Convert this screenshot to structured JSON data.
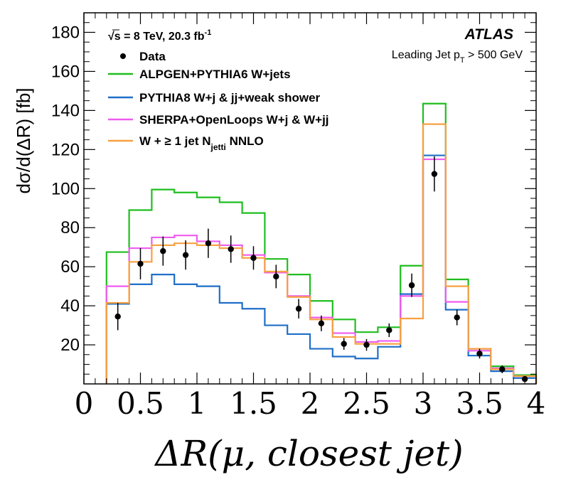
{
  "chart_data": {
    "type": "line",
    "xlabel": "ΔR(μ, closest jet)",
    "ylabel": "dσ/d(ΔR) [fb]",
    "xlim": [
      0,
      4
    ],
    "ylim": [
      0,
      190
    ],
    "x_ticks": [
      "0",
      "0.5",
      "1",
      "1.5",
      "2",
      "2.5",
      "3",
      "3.5",
      "4"
    ],
    "y_ticks": [
      "20",
      "40",
      "60",
      "80",
      "100",
      "120",
      "140",
      "160",
      "180"
    ],
    "bin_edges": [
      0.2,
      0.4,
      0.6,
      0.8,
      1.0,
      1.2,
      1.4,
      1.6,
      1.8,
      2.0,
      2.2,
      2.4,
      2.6,
      2.8,
      3.0,
      3.2,
      3.4,
      3.6,
      3.8,
      4.0
    ],
    "annotations": {
      "energy_prefix": "√s = 8 TeV, 20.3 fb",
      "energy_sup": "-1",
      "experiment": "ATLAS",
      "selection_prefix": "Leading Jet p",
      "selection_sub": "T",
      "selection_suffix": " > 500 GeV"
    },
    "data": {
      "name": "Data",
      "color": "#000000",
      "x": [
        0.3,
        0.5,
        0.7,
        0.9,
        1.1,
        1.3,
        1.5,
        1.7,
        1.9,
        2.1,
        2.3,
        2.5,
        2.7,
        2.9,
        3.1,
        3.3,
        3.5,
        3.7,
        3.9
      ],
      "y": [
        34.5,
        61.5,
        68.0,
        66.0,
        72.0,
        69.0,
        64.5,
        55.0,
        38.5,
        31.0,
        20.5,
        20.0,
        27.5,
        50.5,
        107.5,
        34.0,
        15.5,
        7.5,
        2.5
      ],
      "err": [
        7.0,
        8.0,
        7.5,
        7.5,
        7.5,
        7.0,
        6.0,
        6.0,
        5.0,
        4.0,
        3.0,
        3.0,
        3.5,
        6.0,
        9.0,
        4.0,
        2.5,
        2.0,
        1.0
      ]
    },
    "series": [
      {
        "name": "ALPGEN+PYTHIA6 W+jets",
        "color": "#1fbe1f",
        "values": [
          67.5,
          89.0,
          99.5,
          98.0,
          95.5,
          93.0,
          87.5,
          64.0,
          56.0,
          42.5,
          33.0,
          26.5,
          29.0,
          60.5,
          143.5,
          53.5,
          18.0,
          9.0,
          4.5
        ]
      },
      {
        "name": "PYTHIA8 W+j & jj+weak shower",
        "color": "#1f6fc8",
        "values": [
          41.0,
          51.0,
          56.0,
          51.0,
          50.0,
          41.5,
          38.5,
          30.0,
          25.5,
          18.0,
          14.0,
          13.0,
          19.0,
          46.0,
          117.0,
          38.0,
          14.5,
          6.5,
          3.0
        ]
      },
      {
        "name": "SHERPA+OpenLoops W+j & W+jj",
        "color": "#ef5cef",
        "values": [
          50.0,
          69.5,
          75.0,
          76.0,
          73.0,
          71.0,
          66.0,
          57.0,
          45.0,
          34.0,
          26.0,
          21.5,
          22.0,
          45.0,
          115.0,
          42.0,
          17.0,
          8.0,
          4.0
        ]
      },
      {
        "name": "W + ≥ 1 jet N",
        "name_sub": "jetti",
        "name_suffix": " NNLO",
        "color": "#f7a040",
        "values": [
          41.5,
          62.5,
          71.0,
          72.0,
          71.0,
          69.5,
          64.5,
          57.5,
          44.5,
          33.0,
          24.0,
          20.5,
          20.5,
          33.5,
          133.0,
          50.0,
          18.0,
          7.5,
          4.0
        ]
      }
    ]
  }
}
